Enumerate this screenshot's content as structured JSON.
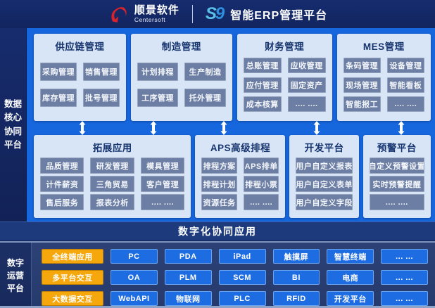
{
  "header": {
    "brand_cn": "顺景软件",
    "brand_en": "Centersoft",
    "logo_mark_s": "S",
    "logo_mark_9": "9",
    "product_title": "智能ERP管理平台"
  },
  "sidebars": {
    "top_label": "数据核心协同平台",
    "top_lines": [
      "数据",
      "核心",
      "协同",
      "平台"
    ],
    "bottom_label": "数字运营平台",
    "bottom_lines": [
      "数字",
      "运营",
      "平台"
    ]
  },
  "panel_rows": [
    {
      "panels": [
        {
          "title": "供应链管理",
          "items": [
            "采购管理",
            "销售管理",
            "库存管理",
            "批号管理"
          ]
        },
        {
          "title": "制造管理",
          "items": [
            "计划排程",
            "生产制造",
            "工序管理",
            "托外管理"
          ]
        },
        {
          "title": "财务管理",
          "items": [
            "总账管理",
            "应收管理",
            "应付管理",
            "固定资产",
            "成本核算",
            ".... ...."
          ]
        },
        {
          "title": "MES管理",
          "items": [
            "条码管理",
            "设备管理",
            "现场管理",
            "智能看板",
            "智能报工",
            ".... ...."
          ]
        }
      ]
    },
    {
      "panels": [
        {
          "title": "拓展应用",
          "items": [
            "品质管理",
            "研发管理",
            "模具管理",
            "计件薪资",
            "三角贸易",
            "客户管理",
            "售后服务",
            "报表分析",
            ".... ...."
          ]
        },
        {
          "title": "APS高级排程",
          "items": [
            "排程方案",
            "APS排单",
            "排程计划",
            "排程小票",
            "资源任务",
            ".... ...."
          ]
        },
        {
          "title": "开发平台",
          "items": [
            "用户自定义报表",
            "用户自定义表单",
            "用户自定义字段"
          ]
        },
        {
          "title": "预警平台",
          "items": [
            "自定义预警设置",
            "实时预警提醒",
            ".... ...."
          ]
        }
      ]
    }
  ],
  "collab_bar": {
    "label": "数字化协同应用"
  },
  "bottom_section": {
    "rows": [
      {
        "label": "全终端应用",
        "items": [
          "PC",
          "PDA",
          "iPad",
          "触摸屏",
          "智慧终端",
          "... ..."
        ]
      },
      {
        "label": "多平台交互",
        "items": [
          "OA",
          "PLM",
          "SCM",
          "BI",
          "电商",
          "... ..."
        ]
      },
      {
        "label": "大数据交互",
        "items": [
          "WebAPI",
          "物联网",
          "PLC",
          "RFID",
          "开发平台",
          "... ..."
        ]
      }
    ]
  },
  "colors": {
    "header_bg": "#14296b",
    "main_bg": "#1667de",
    "panel_bg": "#d8e5f6",
    "chip_bg": "#6c7ea4",
    "panel_title_text": "#17356f",
    "collab_bar_bg": "#1c3a7c",
    "bottom_bg": "#2c4176",
    "accent_yellow": "#f6a70b",
    "button_blue": "#1e6ce2",
    "brand_red": "#d8232a",
    "logo_blue_s": "#5ac0ea",
    "logo_blue_9": "#2f8fdd"
  }
}
